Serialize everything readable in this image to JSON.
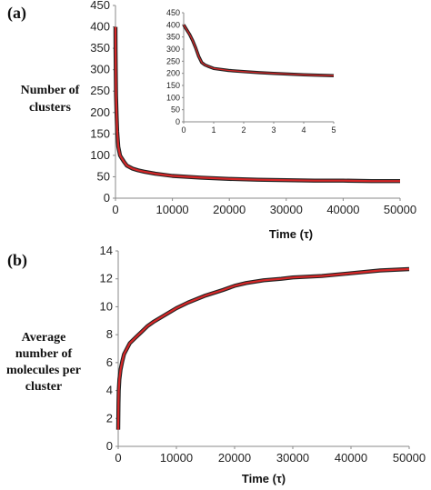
{
  "chart_data": [
    {
      "panel_label": "(a)",
      "type": "line",
      "ylabel_lines": [
        "Number of",
        "clusters"
      ],
      "xlabel": "Time (τ)",
      "xlim": [
        0,
        50000
      ],
      "ylim": [
        0,
        450
      ],
      "xticks": [
        "0",
        "10000",
        "20000",
        "30000",
        "40000",
        "50000"
      ],
      "yticks": [
        "0",
        "50",
        "100",
        "150",
        "200",
        "250",
        "300",
        "350",
        "400",
        "450"
      ],
      "series": [
        {
          "color": "#d62728",
          "x": [
            0,
            5,
            20,
            50,
            100,
            200,
            300,
            500,
            800,
            1000,
            1500,
            2000,
            3000,
            4000,
            5000,
            7000,
            10000,
            15000,
            20000,
            25000,
            30000,
            35000,
            40000,
            45000,
            50000
          ],
          "y": [
            400,
            385,
            345,
            300,
            240,
            190,
            155,
            120,
            100,
            95,
            85,
            76,
            69,
            65,
            62,
            57,
            52,
            48,
            45,
            43,
            42,
            41,
            41,
            40,
            40
          ]
        }
      ],
      "inset": {
        "xlim": [
          0,
          5
        ],
        "ylim": [
          0,
          450
        ],
        "xticks": [
          "0",
          "1",
          "2",
          "3",
          "4",
          "5"
        ],
        "yticks": [
          "0",
          "50",
          "100",
          "150",
          "200",
          "250",
          "300",
          "350",
          "400",
          "450"
        ],
        "x": [
          0,
          0.1,
          0.2,
          0.3,
          0.4,
          0.5,
          0.6,
          0.7,
          0.8,
          1.0,
          1.5,
          2.0,
          2.5,
          3.0,
          3.5,
          4.0,
          4.5,
          5.0
        ],
        "y": [
          400,
          380,
          360,
          335,
          305,
          270,
          245,
          235,
          230,
          220,
          212,
          207,
          203,
          200,
          197,
          194,
          192,
          190
        ]
      }
    },
    {
      "panel_label": "(b)",
      "type": "line",
      "ylabel_lines": [
        "Average",
        "number of",
        "molecules per",
        "cluster"
      ],
      "xlabel": "Time (τ)",
      "xlim": [
        0,
        50000
      ],
      "ylim": [
        0,
        14
      ],
      "xticks": [
        "0",
        "10000",
        "20000",
        "30000",
        "40000",
        "50000"
      ],
      "yticks": [
        "0",
        "2",
        "4",
        "6",
        "8",
        "10",
        "12",
        "14"
      ],
      "series": [
        {
          "color": "#d62728",
          "x": [
            0,
            50,
            100,
            200,
            400,
            700,
            1000,
            1500,
            2000,
            3000,
            4000,
            5000,
            6000,
            8000,
            10000,
            12000,
            15000,
            18000,
            20000,
            22000,
            25000,
            28000,
            30000,
            35000,
            40000,
            45000,
            50000
          ],
          "y": [
            1.2,
            3.0,
            4.0,
            4.8,
            5.5,
            6.1,
            6.6,
            7.0,
            7.4,
            7.8,
            8.2,
            8.6,
            8.9,
            9.4,
            9.9,
            10.3,
            10.8,
            11.2,
            11.5,
            11.7,
            11.9,
            12.0,
            12.1,
            12.2,
            12.4,
            12.6,
            12.7
          ]
        }
      ]
    }
  ]
}
